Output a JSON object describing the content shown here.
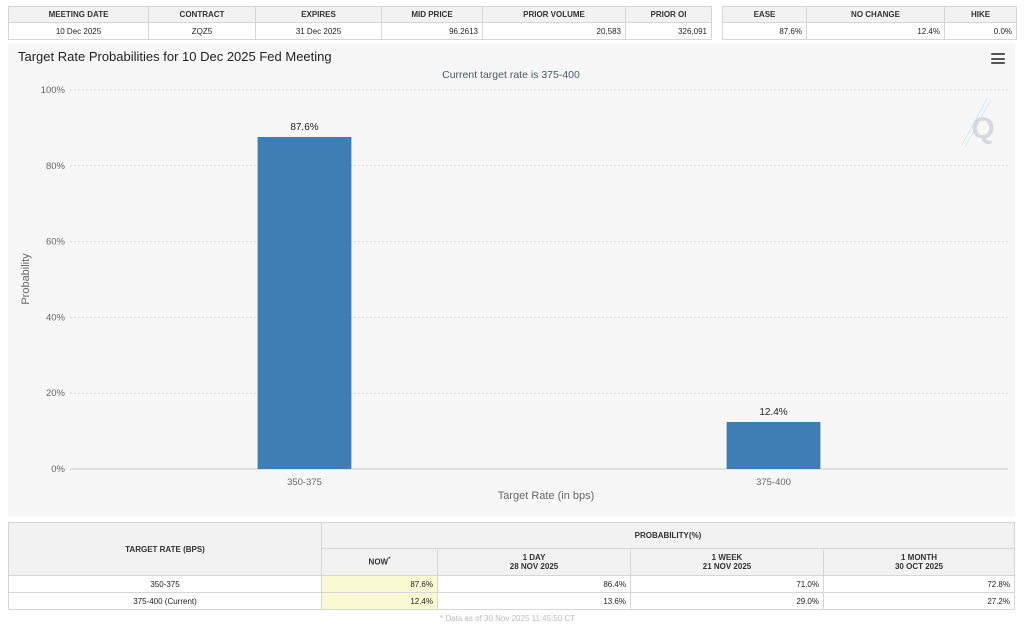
{
  "contract_table": {
    "headers": [
      "MEETING DATE",
      "CONTRACT",
      "EXPIRES",
      "MID PRICE",
      "PRIOR VOLUME",
      "PRIOR OI"
    ],
    "row": [
      "10 Dec 2025",
      "ZQZ5",
      "31 Dec 2025",
      "96.2613",
      "20,583",
      "326,091"
    ]
  },
  "outcome_table": {
    "headers": [
      "EASE",
      "NO CHANGE",
      "HIKE"
    ],
    "row": [
      "87.6%",
      "12.4%",
      "0.0%"
    ]
  },
  "chart": {
    "title": "Target Rate Probabilities for 10 Dec 2025 Fed Meeting",
    "subtitle": "Current target rate is 375-400",
    "menu_icon": "hamburger-menu-icon",
    "watermark_icon": "q-logo-icon"
  },
  "chart_data": {
    "type": "bar",
    "title": "Target Rate Probabilities for 10 Dec 2025 Fed Meeting",
    "subtitle": "Current target rate is 375-400",
    "categories": [
      "350-375",
      "375-400"
    ],
    "values": [
      87.6,
      12.4
    ],
    "data_labels": [
      "87.6%",
      "12.4%"
    ],
    "xlabel": "Target Rate (in bps)",
    "ylabel": "Probability",
    "ylim": [
      0,
      100
    ],
    "yticks": [
      0,
      20,
      40,
      60,
      80,
      100
    ],
    "ytick_labels": [
      "0%",
      "20%",
      "40%",
      "60%",
      "80%",
      "100%"
    ],
    "grid": true,
    "legend": "none",
    "bar_color": "#3f7db5"
  },
  "probability_table": {
    "header_left": "TARGET RATE (BPS)",
    "header_group": "PROBABILITY(%)",
    "columns": [
      {
        "label": "NOW",
        "marker": "*",
        "date": ""
      },
      {
        "label": "1 DAY",
        "date": "28 NOV 2025"
      },
      {
        "label": "1 WEEK",
        "date": "21 NOV 2025"
      },
      {
        "label": "1 MONTH",
        "date": "30 OCT 2025"
      }
    ],
    "rows": [
      {
        "rate": "350-375",
        "values": [
          "87.6%",
          "86.4%",
          "71.0%",
          "72.8%"
        ]
      },
      {
        "rate": "375-400 (Current)",
        "values": [
          "12.4%",
          "13.6%",
          "29.0%",
          "27.2%"
        ]
      }
    ],
    "footnote": "* Data as of 30 Nov 2025 11:45:50 CT"
  }
}
